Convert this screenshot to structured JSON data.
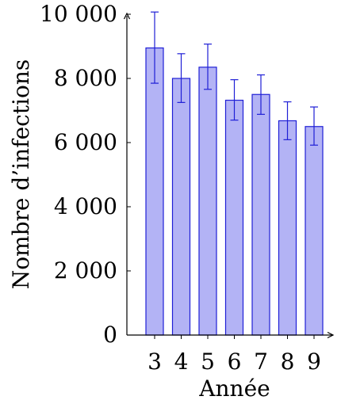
{
  "chart_data": {
    "type": "bar",
    "title": "",
    "xlabel": "Année",
    "ylabel": "Nombre d’infections",
    "categories": [
      "3",
      "4",
      "5",
      "6",
      "7",
      "8",
      "9"
    ],
    "values": [
      8950,
      8000,
      8350,
      7320,
      7500,
      6680,
      6500
    ],
    "error_upper": [
      10070,
      8770,
      9070,
      7960,
      8110,
      7270,
      7110
    ],
    "error_lower": [
      7850,
      7250,
      7660,
      6700,
      6880,
      6090,
      5920
    ],
    "ylim": [
      0,
      10000
    ],
    "yticks": [
      0,
      2000,
      4000,
      6000,
      8000,
      10000
    ],
    "ytick_labels": [
      "0",
      "2 000",
      "4 000",
      "6 000",
      "8 000",
      "10 000"
    ],
    "grid": false,
    "colors": {
      "bar_fill": "#b3b3f5",
      "bar_stroke": "#1f1fd6",
      "error_bar": "#1f1fd6",
      "axis": "#000000"
    }
  }
}
